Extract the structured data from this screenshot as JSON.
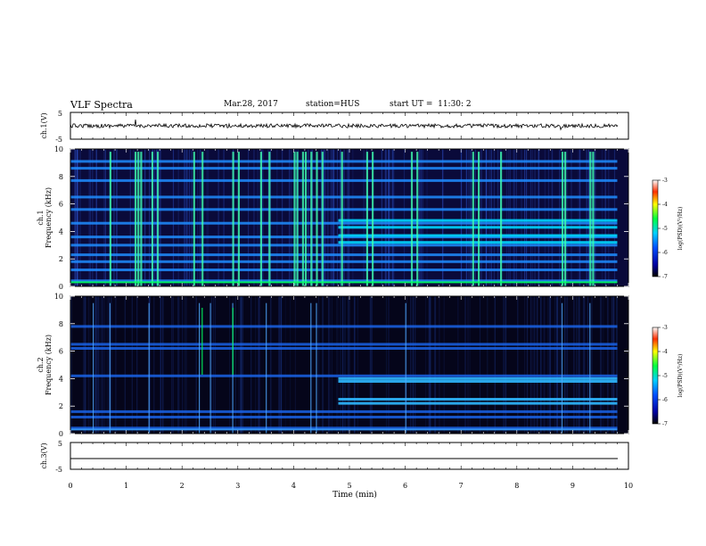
{
  "header": {
    "title": "VLF Spectra",
    "date": "Mar.28, 2017",
    "station": "station=HUS",
    "start_ut": "start UT =  11:30: 2"
  },
  "chart_data": [
    {
      "type": "line",
      "panel": "ch1-waveform",
      "ylabel": "ch.1(V)",
      "ylim": [
        -5,
        5
      ],
      "yticks": [
        "5",
        "-5"
      ],
      "xlim": [
        0,
        10
      ],
      "trace": "noise band around 0 V"
    },
    {
      "type": "heatmap",
      "panel": "ch1-spectrogram",
      "ylabel_line1": "ch.1",
      "ylabel_line2": "Frequency (kHz)",
      "ylim": [
        0,
        10
      ],
      "yticks": [
        "0",
        "2",
        "4",
        "6",
        "8",
        "10"
      ],
      "xlim": [
        0,
        10
      ],
      "colorbar": {
        "label": "log(PSD)(V²/Hz)",
        "range": [
          -7,
          -3
        ],
        "ticks": [
          "-3",
          "-4",
          "-5",
          "-6",
          "-7"
        ]
      },
      "horizontal_bands_khz": [
        0.4,
        1.2,
        1.8,
        2.3,
        3.0,
        3.6,
        4.6,
        5.6,
        6.5,
        7.7,
        8.6,
        9.1
      ],
      "bands_after_5min_khz": [
        3.2,
        3.7,
        4.3,
        4.8
      ],
      "impulsive_emissions_min": [
        0.7,
        1.15,
        1.2,
        1.25,
        1.45,
        1.55,
        2.2,
        2.35,
        2.9,
        3.0,
        3.4,
        3.55,
        4.0,
        4.05,
        4.15,
        4.2,
        4.3,
        4.4,
        4.5,
        4.85,
        5.3,
        5.4,
        6.1,
        6.2,
        7.2,
        7.3,
        7.7,
        8.8,
        8.85,
        9.3,
        9.35
      ]
    },
    {
      "type": "heatmap",
      "panel": "ch2-spectrogram",
      "ylabel_line1": "ch.2",
      "ylabel_line2": "Frequency (kHz)",
      "ylim": [
        0,
        10
      ],
      "yticks": [
        "0",
        "2",
        "4",
        "6",
        "8",
        "10"
      ],
      "xlim": [
        0,
        10
      ],
      "colorbar": {
        "label": "log(PSD)(V²/Hz)",
        "range": [
          -7,
          -3
        ],
        "ticks": [
          "-3",
          "-4",
          "-5",
          "-6",
          "-7"
        ]
      },
      "horizontal_bands_khz": [
        0.4,
        1.2,
        1.6,
        4.2,
        6.2,
        6.5,
        7.8
      ],
      "bands_after_5min_khz": [
        2.2,
        2.5,
        3.8,
        4.0
      ],
      "impulsive_emissions_min": [
        0.4,
        0.7,
        1.4,
        2.3,
        2.5,
        2.9,
        3.5,
        4.3,
        4.4,
        6.0,
        8.8,
        9.3
      ]
    },
    {
      "type": "line",
      "panel": "ch3-waveform",
      "ylabel": "ch.3(V)",
      "ylim": [
        -5,
        5
      ],
      "yticks": [
        "5",
        "-5"
      ],
      "xlim": [
        0,
        10
      ],
      "trace": "flat line at about -1 V"
    }
  ],
  "xaxis": {
    "label": "Time (min)",
    "ticks": [
      "0",
      "1",
      "2",
      "3",
      "4",
      "5",
      "6",
      "7",
      "8",
      "9",
      "10"
    ]
  }
}
